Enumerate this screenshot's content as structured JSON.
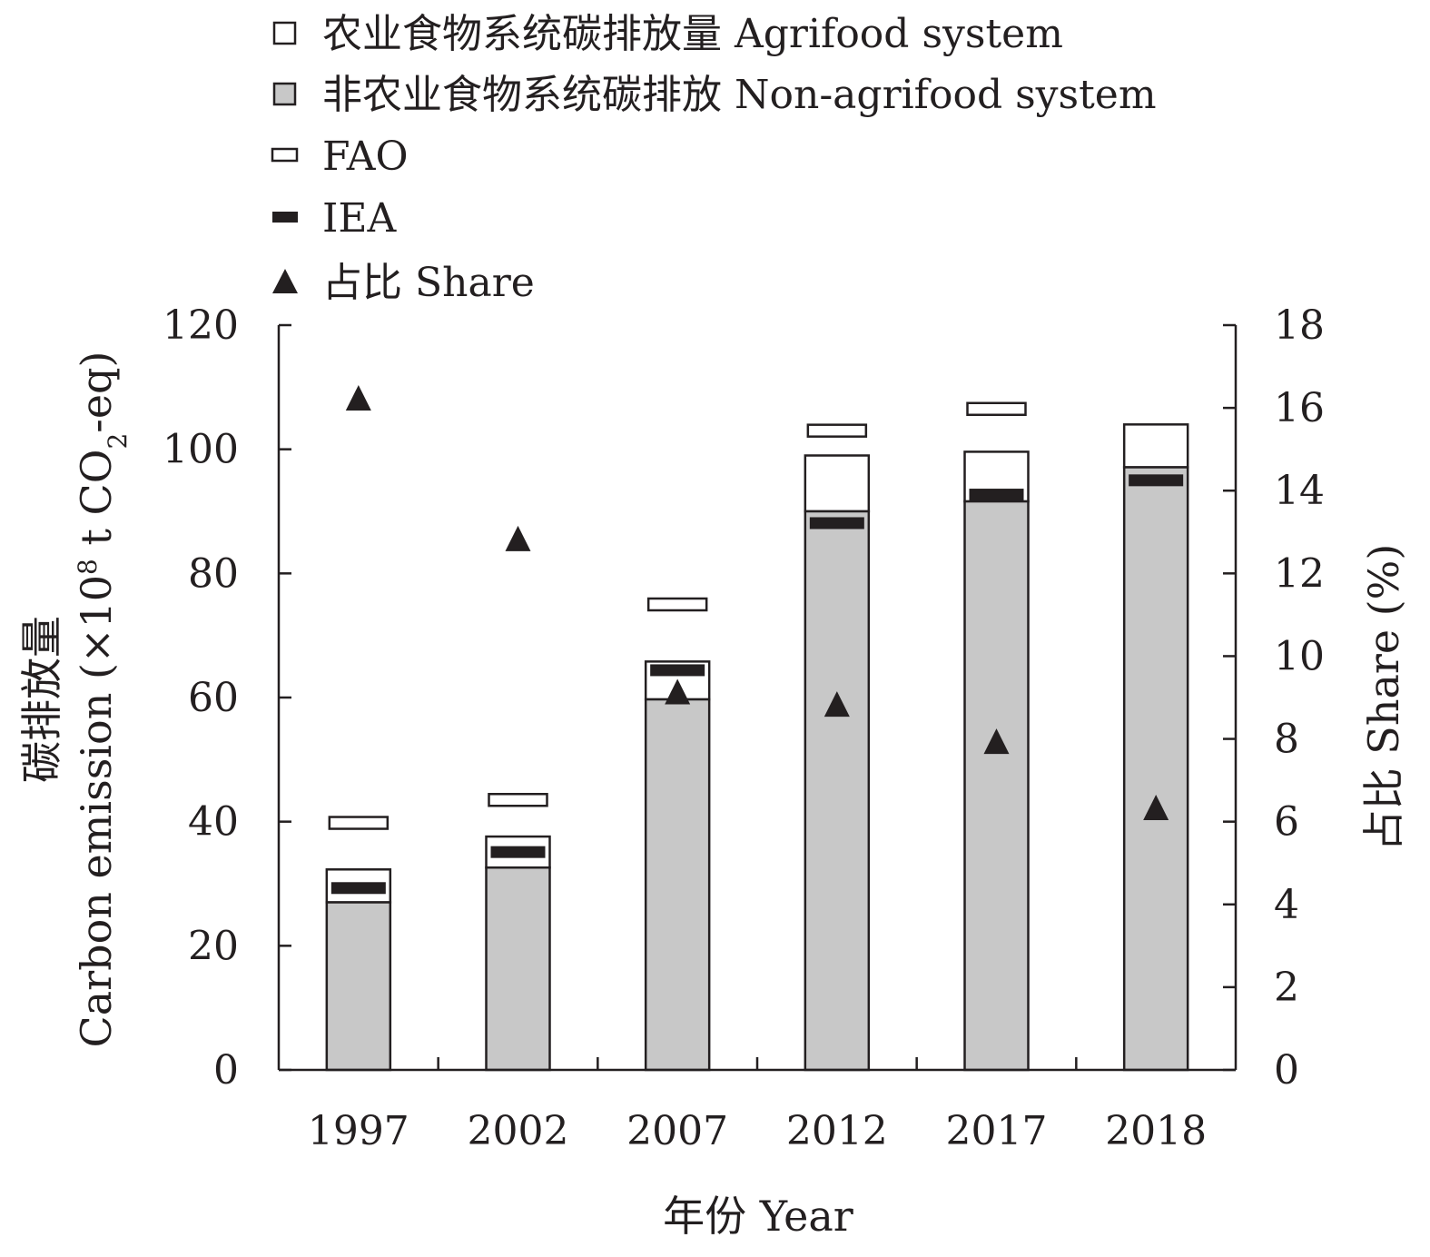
{
  "chart_data": {
    "type": "bar",
    "categories": [
      "1997",
      "2002",
      "2007",
      "2012",
      "2017",
      "2018"
    ],
    "series": [
      {
        "name": "非农业食物系统碳排放 Non-agrifood system",
        "kind": "stacked-bar-bottom",
        "values": [
          27.0,
          32.6,
          59.7,
          90.0,
          91.6,
          97.1
        ]
      },
      {
        "name": "农业食物系统碳排放量 Agrifood system",
        "kind": "stacked-bar-top",
        "values": [
          5.3,
          5.0,
          6.1,
          9.0,
          8.0,
          6.9
        ]
      },
      {
        "name": "FAO",
        "kind": "marker-hollow-bar",
        "values": [
          39.8,
          43.5,
          75.0,
          103.0,
          106.5,
          null
        ]
      },
      {
        "name": "IEA",
        "kind": "marker-solid-bar",
        "values": [
          29.3,
          35.1,
          64.4,
          88.1,
          92.7,
          95.0
        ]
      },
      {
        "name": "占比 Share",
        "kind": "triangle",
        "axis": "right",
        "values": [
          16.2,
          12.8,
          9.1,
          8.8,
          7.9,
          6.3
        ]
      }
    ],
    "xlabel": "年份 Year",
    "ylabel_cn": "碳排放量",
    "ylabel_en_pre": "Carbon emission (×10",
    "ylabel_en_sup": "8",
    "ylabel_en_mid": " t CO",
    "ylabel_en_sub": "2",
    "ylabel_en_post": "-eq)",
    "ylabel_right": "占比 Share (%)",
    "ylim": [
      0,
      120
    ],
    "yticks": [
      0,
      20,
      40,
      60,
      80,
      100,
      120
    ],
    "ylim_right": [
      0,
      18
    ],
    "yticks_right": [
      0,
      2,
      4,
      6,
      8,
      10,
      12,
      14,
      16,
      18
    ],
    "grid": false,
    "legend_position": "top-left",
    "colors": {
      "non_agrifood": "#c8c8c8",
      "agrifood": "#ffffff",
      "iea": "#231f20",
      "stroke": "#231f20"
    }
  }
}
